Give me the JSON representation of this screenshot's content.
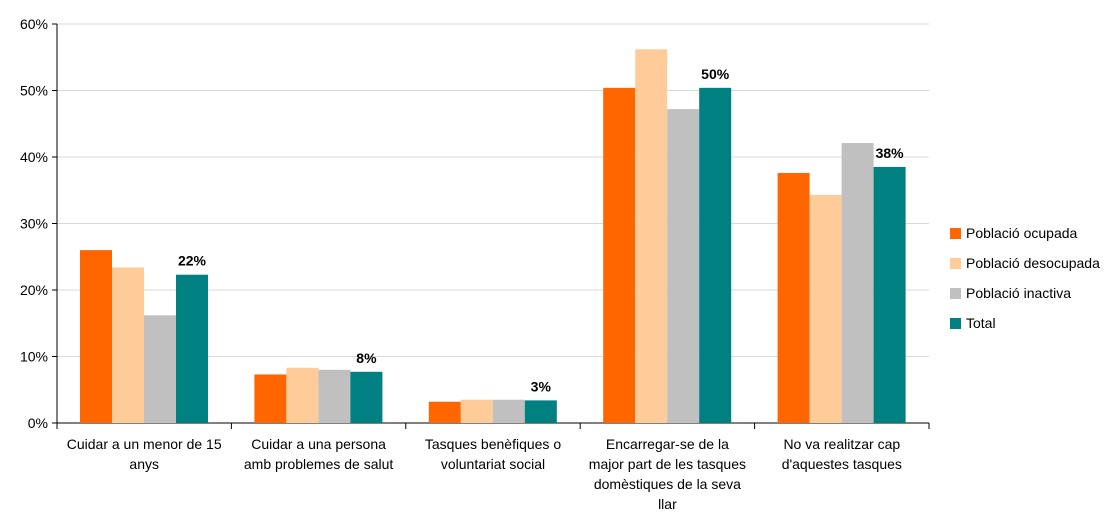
{
  "chart_data": {
    "type": "bar",
    "categories": [
      [
        "Cuidar a un menor de 15",
        "anys"
      ],
      [
        "Cuidar a una persona",
        "amb problemes de salut"
      ],
      [
        "Tasques benèfiques o",
        "voluntariat social"
      ],
      [
        "Encarregar-se de la",
        "major part de les tasques",
        "domèstiques de la seva",
        "llar"
      ],
      [
        "No va realitzar cap",
        "d'aquestes tasques"
      ]
    ],
    "series": [
      {
        "name": "Població ocupada",
        "color": "#FF6600",
        "values": [
          26.0,
          7.3,
          3.2,
          50.4,
          37.6
        ]
      },
      {
        "name": "Població desocupada",
        "color": "#FFCC99",
        "values": [
          23.4,
          8.3,
          3.5,
          56.2,
          34.3
        ]
      },
      {
        "name": "Població inactiva",
        "color": "#C0C0C0",
        "values": [
          16.2,
          8.0,
          3.5,
          47.2,
          42.1
        ]
      },
      {
        "name": "Total",
        "color": "#008080",
        "values": [
          22.3,
          7.7,
          3.4,
          50.4,
          38.5
        ]
      }
    ],
    "data_labels": [
      "22%",
      "8%",
      "3%",
      "50%",
      "38%"
    ],
    "yticks": [
      "0%",
      "10%",
      "20%",
      "30%",
      "40%",
      "50%",
      "60%"
    ],
    "ylim": [
      0,
      60
    ],
    "grid": true,
    "legend_position": "right"
  }
}
